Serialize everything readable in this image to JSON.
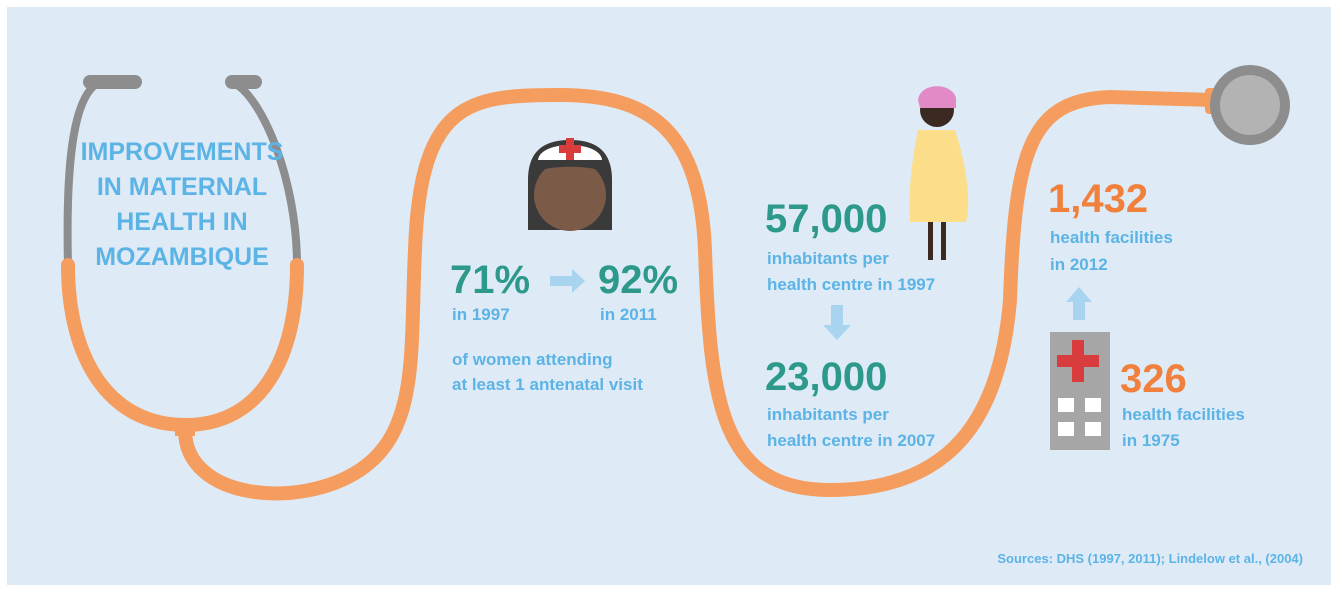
{
  "title": {
    "lines": [
      "IMPROVEMENTS",
      "IN MATERNAL",
      "HEALTH IN",
      "MOZAMBIQUE"
    ]
  },
  "antenatal": {
    "from": {
      "value": "71%",
      "year": "in 1997"
    },
    "to": {
      "value": "92%",
      "year": "in 2011"
    },
    "note": [
      "of women attending",
      "at least 1 antenatal visit"
    ]
  },
  "inhabitants": [
    {
      "value": "57,000",
      "lines": [
        "inhabitants per",
        "health centre in 1997"
      ]
    },
    {
      "value": "23,000",
      "lines": [
        "inhabitants per",
        "health centre in 2007"
      ]
    }
  ],
  "facilities": [
    {
      "value": "1,432",
      "lines": [
        "health facilities",
        "in 2012"
      ]
    },
    {
      "value": "326",
      "lines": [
        "health facilities",
        "in 1975"
      ]
    }
  ],
  "sources": "Sources: DHS (1997, 2011); Lindelow et al., (2004)"
}
